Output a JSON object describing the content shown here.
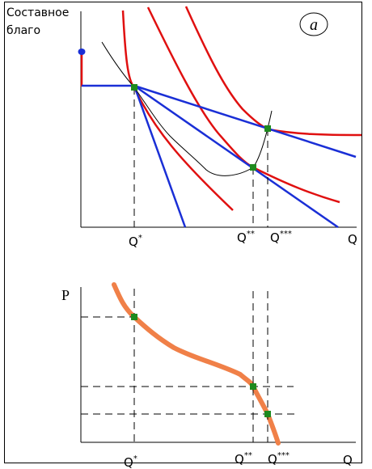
{
  "top_panel": {
    "y_label_line1": "Составное",
    "y_label_line2": "благо",
    "panel_tag": "a",
    "x_axis_label": "Q",
    "q1": {
      "base": "Q",
      "sup": "*"
    },
    "q2": {
      "base": "Q",
      "sup": "**"
    },
    "q3": {
      "base": "Q",
      "sup": "***"
    }
  },
  "bottom_panel": {
    "y_axis_label": "P",
    "x_axis_label": "Q",
    "q1": {
      "base": "Q",
      "sup": "*"
    },
    "q2": {
      "base": "Q",
      "sup": "**"
    },
    "q3": {
      "base": "Q",
      "sup": "***"
    }
  },
  "colors": {
    "indifference_curve": "#e01010",
    "budget_line": "#1a2fd6",
    "demand_curve": "#f08048",
    "equilibrium_point": "#1e8a1e",
    "income_endowment_dot": "#1a2fd6",
    "axis": "#000000"
  }
}
